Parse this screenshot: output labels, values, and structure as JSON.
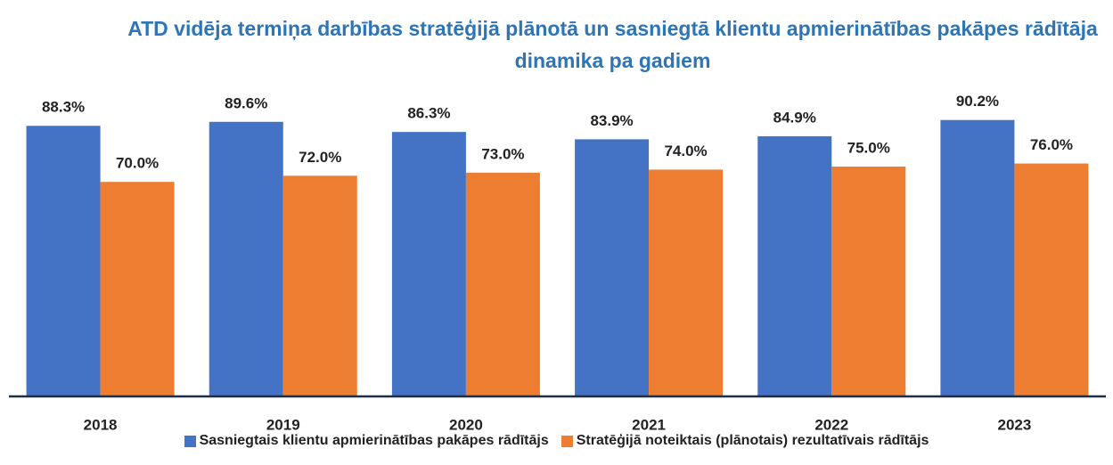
{
  "chart_data": {
    "type": "bar",
    "title": "ATD vidēja termiņa darbības stratēģijā plānotā un sasniegtā klientu apmierinātības pakāpes rādītāja dinamika pa gadiem",
    "categories": [
      "2018",
      "2019",
      "2020",
      "2021",
      "2022",
      "2023"
    ],
    "series": [
      {
        "name": "Sasniegtais klientu apmierinātības pakāpes rādītājs",
        "color": "#4472c4",
        "values": [
          88.3,
          89.6,
          86.3,
          83.9,
          84.9,
          90.2
        ],
        "value_labels": [
          "88.3%",
          "89.6%",
          "86.3%",
          "83.9%",
          "84.9%",
          "90.2%"
        ]
      },
      {
        "name": "Stratēģijā noteiktais (plānotais) rezultatīvais rādītājs",
        "color": "#ed7d31",
        "values": [
          70.0,
          72.0,
          73.0,
          74.0,
          75.0,
          76.0
        ],
        "value_labels": [
          "70.0%",
          "72.0%",
          "73.0%",
          "74.0%",
          "75.0%",
          "76.0%"
        ]
      }
    ],
    "ylim": [
      0,
      100
    ],
    "legend": "bottom"
  }
}
